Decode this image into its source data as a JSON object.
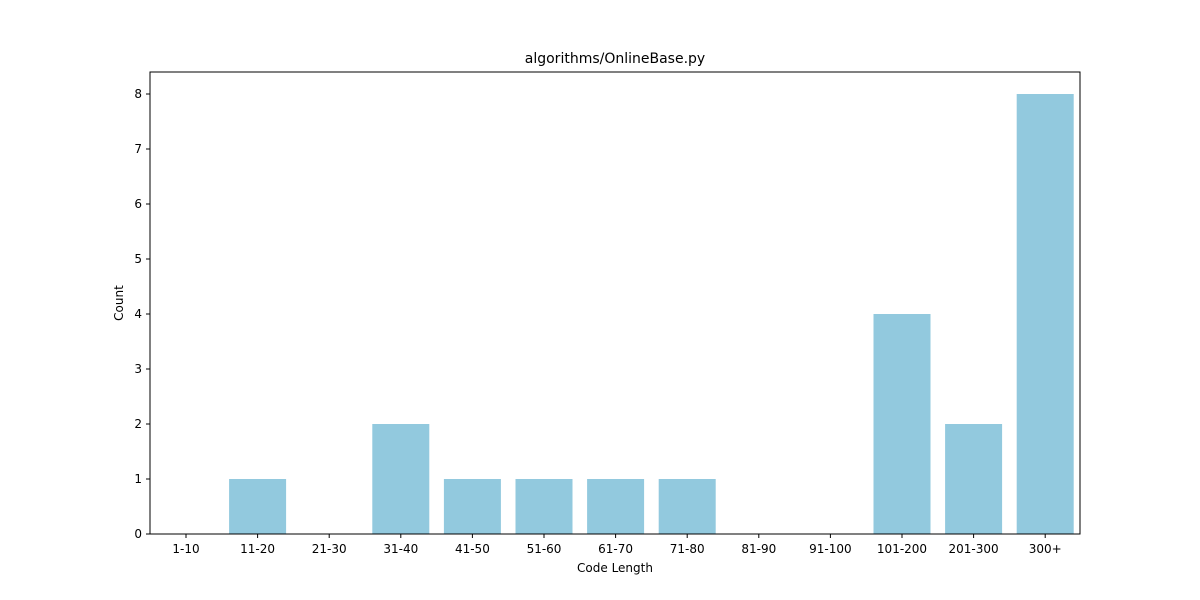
{
  "chart_data": {
    "type": "bar",
    "title": "algorithms/OnlineBase.py",
    "xlabel": "Code Length",
    "ylabel": "Count",
    "categories": [
      "1-10",
      "11-20",
      "21-30",
      "31-40",
      "41-50",
      "51-60",
      "61-70",
      "71-80",
      "81-90",
      "91-100",
      "101-200",
      "201-300",
      "300+"
    ],
    "values": [
      0,
      1,
      0,
      2,
      1,
      1,
      1,
      1,
      0,
      0,
      4,
      2,
      8
    ],
    "ylim": [
      0,
      8.4
    ],
    "yticks": [
      0,
      1,
      2,
      3,
      4,
      5,
      6,
      7,
      8
    ],
    "grid": false,
    "bar_color": "#92c9de"
  }
}
